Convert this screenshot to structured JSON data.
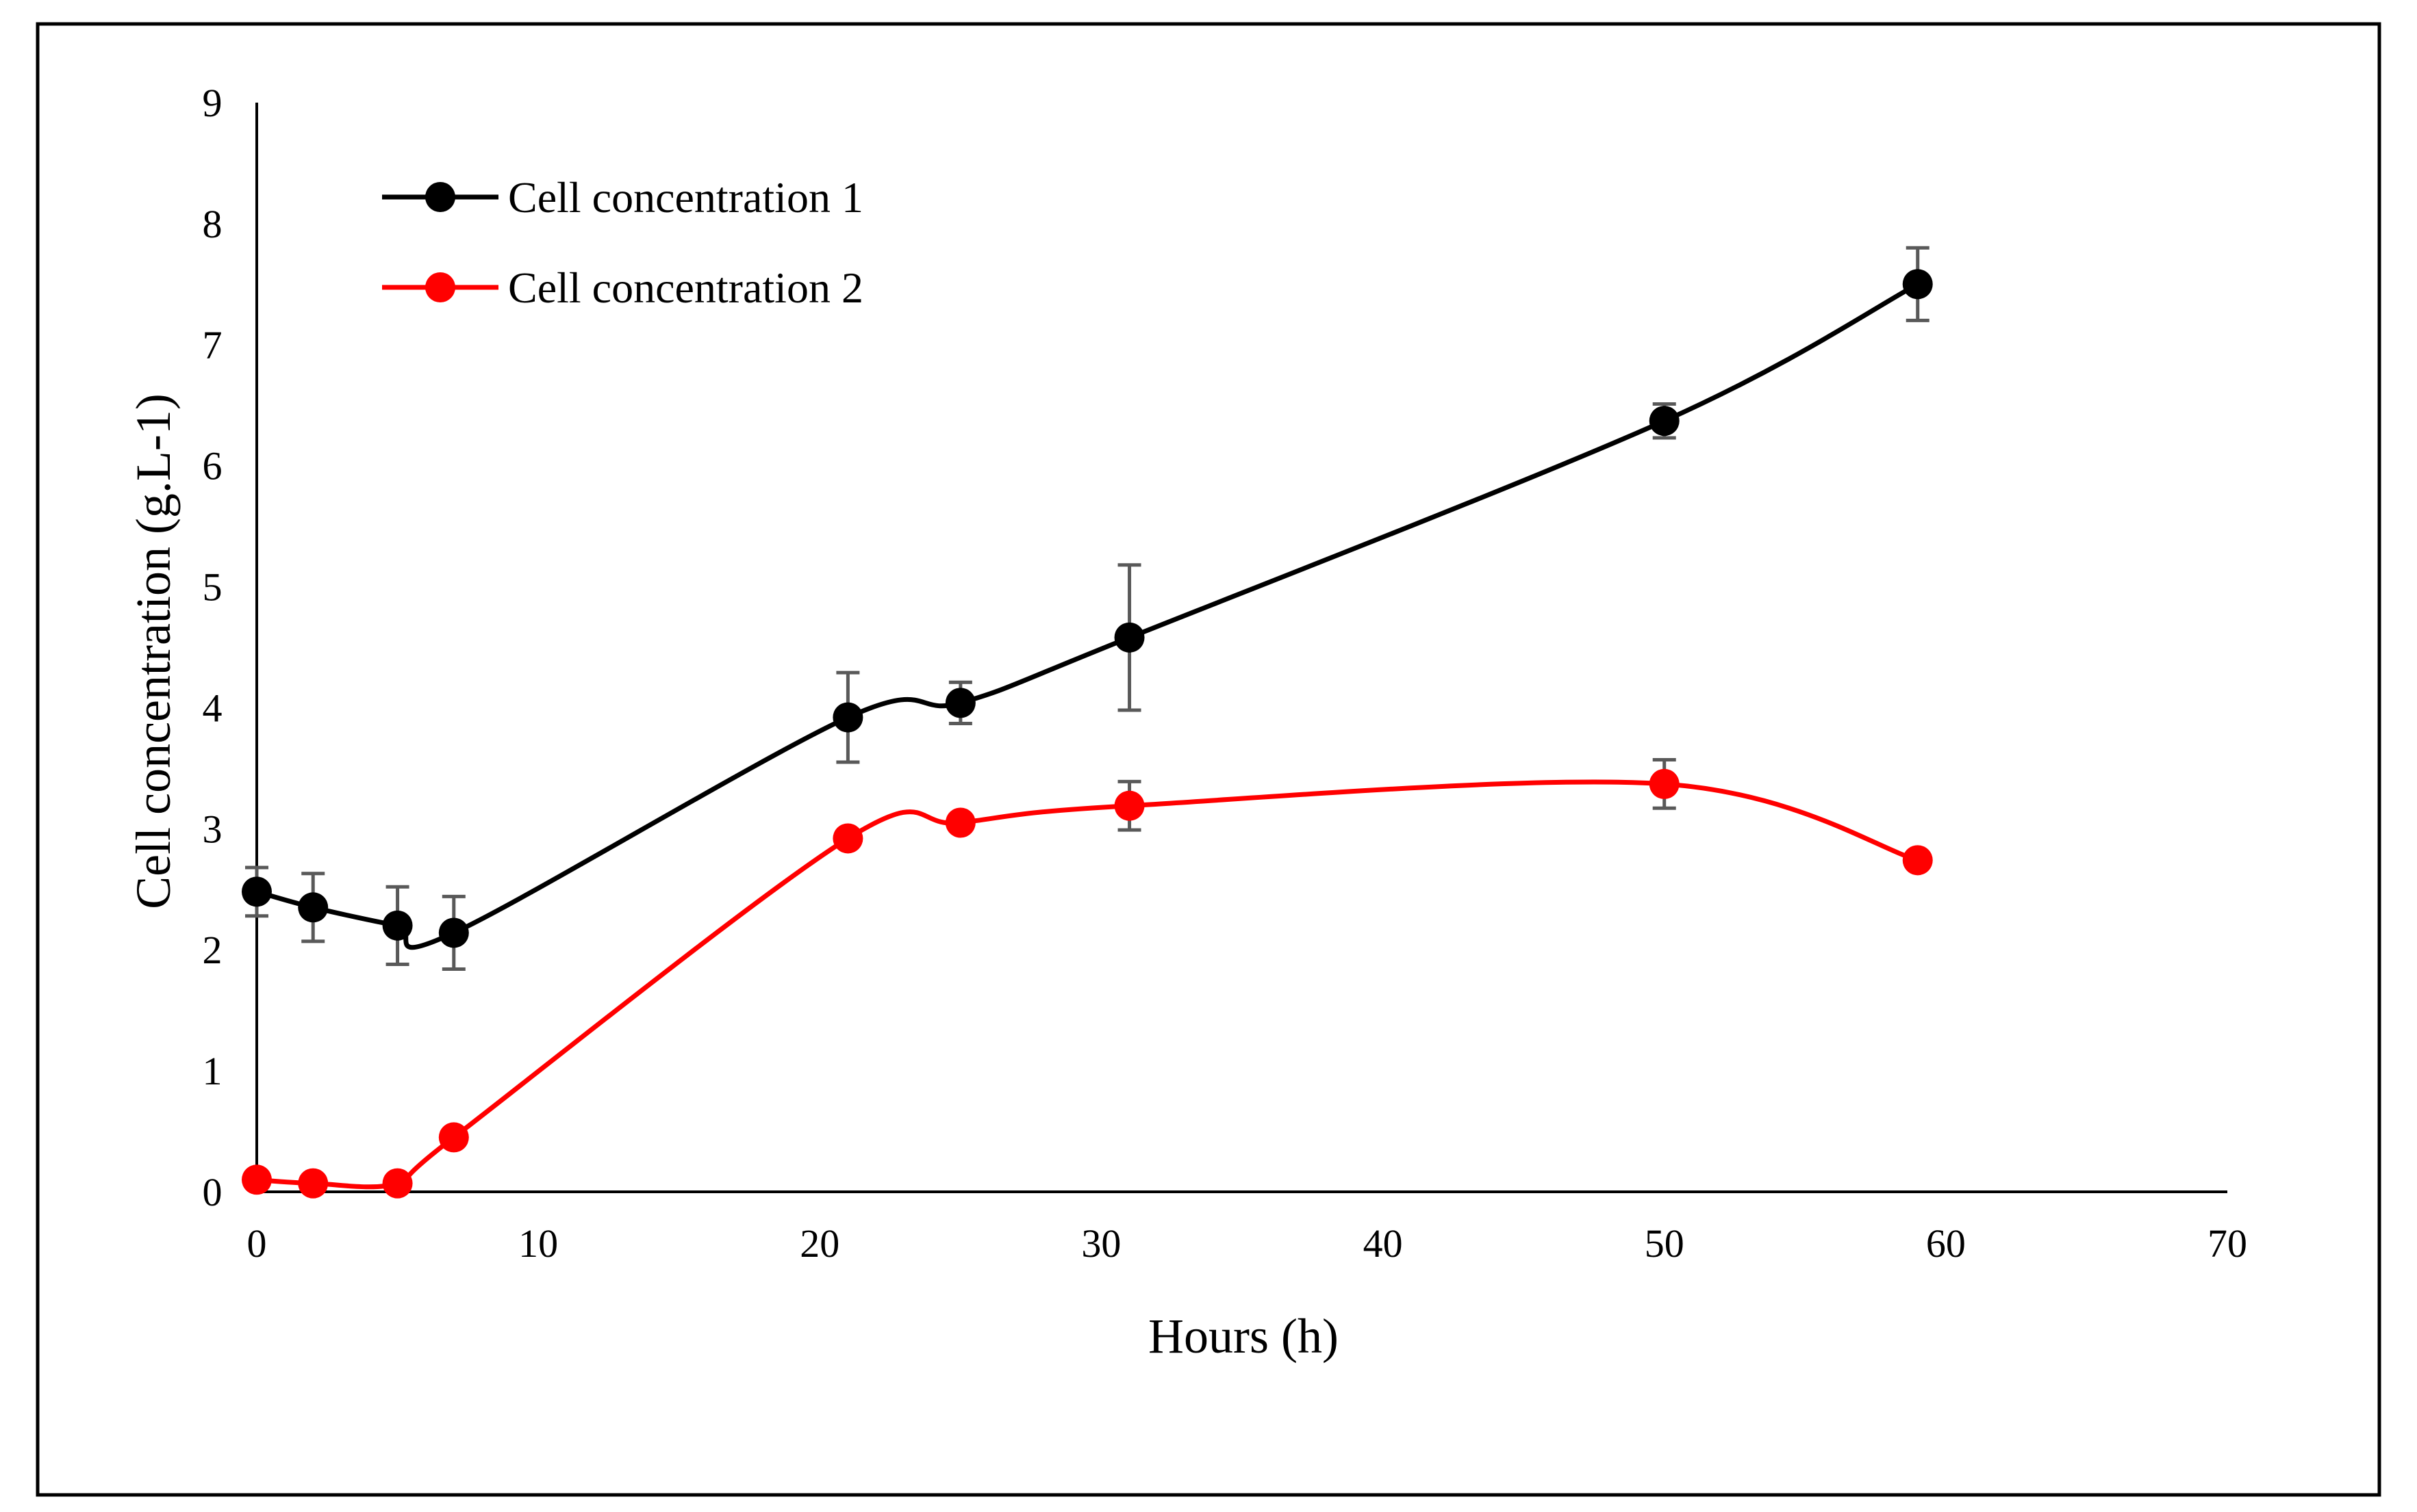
{
  "chart_data": {
    "type": "line",
    "title": "",
    "xlabel": "Hours (h)",
    "ylabel": "Cell concentration (g.L-1)",
    "xlim": [
      0,
      70
    ],
    "ylim": [
      0,
      9
    ],
    "xticks": [
      0,
      10,
      20,
      30,
      40,
      50,
      60,
      70
    ],
    "yticks": [
      0,
      1,
      2,
      3,
      4,
      5,
      6,
      7,
      8,
      9
    ],
    "grid": false,
    "legend_position": "top-left",
    "smooth": true,
    "series": [
      {
        "name": "Cell concentration 1",
        "color": "#000000",
        "x": [
          0,
          2,
          5,
          7,
          21,
          25,
          31,
          50,
          59
        ],
        "y": [
          2.48,
          2.35,
          2.2,
          2.14,
          3.92,
          4.04,
          4.58,
          6.37,
          7.5
        ],
        "error": [
          0.2,
          0.28,
          0.32,
          0.3,
          0.37,
          0.17,
          0.6,
          0.14,
          0.3
        ]
      },
      {
        "name": "Cell concentration 2",
        "color": "#ff0000",
        "x": [
          0,
          2,
          5,
          7,
          21,
          25,
          31,
          50,
          59
        ],
        "y": [
          0.1,
          0.07,
          0.07,
          0.45,
          2.92,
          3.05,
          3.19,
          3.37,
          2.74
        ],
        "error": [
          0,
          0,
          0,
          0,
          0,
          0,
          0.2,
          0.2,
          0
        ]
      }
    ]
  }
}
